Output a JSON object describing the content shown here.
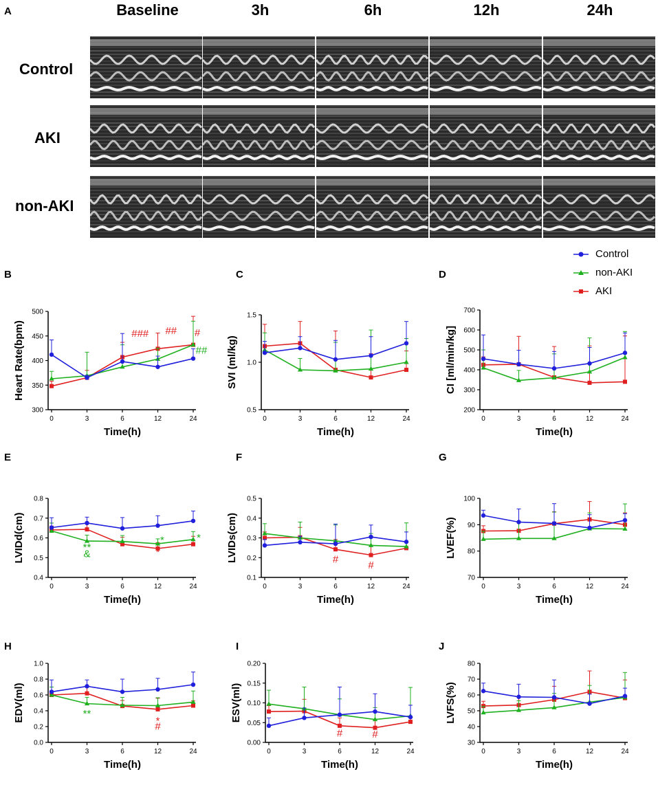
{
  "panel_a": {
    "letter": "A",
    "columns": [
      "Baseline",
      "3h",
      "6h",
      "12h",
      "24h"
    ],
    "rows": [
      "Control",
      "AKI",
      "non-AKI"
    ]
  },
  "legend": [
    {
      "name": "Control",
      "color": "#1f1fdc",
      "marker": "circle"
    },
    {
      "name": "non-AKI",
      "color": "#1fb01f",
      "marker": "triangle"
    },
    {
      "name": "AKI",
      "color": "#e02020",
      "marker": "square"
    }
  ],
  "chart_data": [
    {
      "letter": "B",
      "type": "line",
      "ylabel": "Heart Rate(bpm)",
      "xlabel": "Time(h)",
      "x": [
        0,
        3,
        6,
        12,
        24
      ],
      "ylim": [
        300,
        500
      ],
      "yticks": [
        300,
        350,
        400,
        450,
        500
      ],
      "yticklabels": [
        "300",
        "350",
        "400",
        "450",
        "500"
      ],
      "series": [
        {
          "name": "Control",
          "values": [
            412,
            365,
            398,
            387,
            404
          ],
          "err": [
            30,
            5,
            57,
            22,
            20
          ]
        },
        {
          "name": "non-AKI",
          "values": [
            363,
            369,
            387,
            403,
            432
          ],
          "err": [
            15,
            48,
            45,
            22,
            48
          ]
        },
        {
          "name": "AKI",
          "values": [
            348,
            365,
            407,
            424,
            432
          ],
          "err": [
            10,
            15,
            30,
            32,
            58
          ]
        }
      ],
      "annotations": [
        {
          "text": "###",
          "x": 9,
          "y": 448,
          "color": "#e02020"
        },
        {
          "text": "##",
          "x": 16.5,
          "y": 454,
          "color": "#e02020"
        },
        {
          "text": "#",
          "x": 25.5,
          "y": 450,
          "color": "#e02020"
        },
        {
          "text": "##",
          "x": 27,
          "y": 414,
          "color": "#1fb01f"
        }
      ]
    },
    {
      "letter": "C",
      "type": "line",
      "ylabel": "SVI (ml/kg)",
      "xlabel": "Time(h)",
      "x": [
        0,
        3,
        6,
        12,
        24
      ],
      "ylim": [
        0.5,
        1.5
      ],
      "yticks": [
        0.5,
        1.0,
        1.5
      ],
      "yticklabels": [
        "0.5",
        "1.0",
        "1.5"
      ],
      "series": [
        {
          "name": "Control",
          "values": [
            1.1,
            1.15,
            1.03,
            1.07,
            1.2
          ],
          "err": [
            0.12,
            0.12,
            0.2,
            0.2,
            0.23
          ]
        },
        {
          "name": "non-AKI",
          "values": [
            1.13,
            0.92,
            0.91,
            0.93,
            1.0
          ],
          "err": [
            0.18,
            0.12,
            0.3,
            0.41,
            0.25
          ]
        },
        {
          "name": "AKI",
          "values": [
            1.17,
            1.2,
            0.92,
            0.84,
            0.92
          ],
          "err": [
            0.23,
            0.23,
            0.41,
            0.25,
            0.2
          ]
        }
      ],
      "annotations": []
    },
    {
      "letter": "D",
      "type": "line",
      "ylabel": "CI [ml/min/kg]",
      "xlabel": "Time(h)",
      "x": [
        0,
        3,
        6,
        12,
        24
      ],
      "ylim": [
        200,
        700
      ],
      "yticks": [
        200,
        300,
        400,
        500,
        600,
        700
      ],
      "yticklabels": [
        "200",
        "300",
        "400",
        "500",
        "600",
        "700"
      ],
      "series": [
        {
          "name": "Control",
          "values": [
            455,
            428,
            407,
            432,
            485
          ],
          "err": [
            120,
            70,
            85,
            80,
            100
          ]
        },
        {
          "name": "non-AKI",
          "values": [
            410,
            347,
            360,
            390,
            462
          ],
          "err": [
            90,
            50,
            120,
            170,
            130
          ]
        },
        {
          "name": "AKI",
          "values": [
            425,
            428,
            362,
            335,
            340
          ],
          "err": [
            40,
            140,
            155,
            185,
            230
          ]
        }
      ],
      "annotations": []
    },
    {
      "letter": "E",
      "type": "line",
      "ylabel": "LVIDd(cm)",
      "xlabel": "Time(h)",
      "x": [
        0,
        3,
        6,
        12,
        24
      ],
      "ylim": [
        0.4,
        0.8
      ],
      "yticks": [
        0.4,
        0.5,
        0.6,
        0.7,
        0.8
      ],
      "yticklabels": [
        "0.4",
        "0.5",
        "0.6",
        "0.7",
        "0.8"
      ],
      "series": [
        {
          "name": "Control",
          "values": [
            0.652,
            0.675,
            0.648,
            0.662,
            0.686
          ],
          "err": [
            0.05,
            0.03,
            0.055,
            0.05,
            0.05
          ]
        },
        {
          "name": "non-AKI",
          "values": [
            0.635,
            0.584,
            0.582,
            0.57,
            0.592
          ],
          "err": [
            0.04,
            0.03,
            0.03,
            0.025,
            0.04
          ]
        },
        {
          "name": "AKI",
          "values": [
            0.64,
            0.643,
            0.568,
            0.546,
            0.568
          ],
          "err": [
            0.02,
            0.035,
            0.035,
            0.03,
            0.04
          ]
        }
      ],
      "annotations": [
        {
          "text": "**",
          "x": 3,
          "y": 0.535,
          "color": "#1fb01f"
        },
        {
          "text": "&",
          "x": 3,
          "y": 0.503,
          "color": "#1fb01f"
        },
        {
          "text": "*",
          "x": 13.5,
          "y": 0.572,
          "color": "#1fb01f"
        },
        {
          "text": "*",
          "x": 12,
          "y": 0.512,
          "color": "#e02020"
        },
        {
          "text": "*",
          "x": 26,
          "y": 0.584,
          "color": "#1fb01f"
        }
      ]
    },
    {
      "letter": "F",
      "type": "line",
      "ylabel": "LVIDs(cm)",
      "xlabel": "Time(h)",
      "x": [
        0,
        3,
        6,
        12,
        24
      ],
      "ylim": [
        0.1,
        0.5
      ],
      "yticks": [
        0.1,
        0.2,
        0.3,
        0.4,
        0.5
      ],
      "yticklabels": [
        "0.1",
        "0.2",
        "0.3",
        "0.4",
        "0.5"
      ],
      "series": [
        {
          "name": "Control",
          "values": [
            0.262,
            0.278,
            0.27,
            0.305,
            0.28
          ],
          "err": [
            0.03,
            0.03,
            0.1,
            0.06,
            0.05
          ]
        },
        {
          "name": "non-AKI",
          "values": [
            0.322,
            0.3,
            0.285,
            0.262,
            0.256
          ],
          "err": [
            0.05,
            0.08,
            0.08,
            0.06,
            0.12
          ]
        },
        {
          "name": "AKI",
          "values": [
            0.3,
            0.303,
            0.242,
            0.213,
            0.248
          ],
          "err": [
            0.03,
            0.05,
            0.05,
            0.05,
            0.03
          ]
        }
      ],
      "annotations": [
        {
          "text": "#",
          "x": 6,
          "y": 0.175,
          "color": "#e02020"
        },
        {
          "text": "#",
          "x": 12,
          "y": 0.145,
          "color": "#e02020"
        }
      ]
    },
    {
      "letter": "G",
      "type": "line",
      "ylabel": "LVEF(%)",
      "xlabel": "Time(h)",
      "x": [
        0,
        3,
        6,
        12,
        24
      ],
      "ylim": [
        70,
        100
      ],
      "yticks": [
        70,
        80,
        90,
        100
      ],
      "yticklabels": [
        "70",
        "80",
        "90",
        "100"
      ],
      "series": [
        {
          "name": "Control",
          "values": [
            93.5,
            91.0,
            90.5,
            88.8,
            91.7
          ],
          "err": [
            2,
            5,
            7.5,
            5,
            2.5
          ]
        },
        {
          "name": "non-AKI",
          "values": [
            84.5,
            84.8,
            84.8,
            88.5,
            88.4
          ],
          "err": [
            3,
            6,
            10,
            6,
            9.5
          ]
        },
        {
          "name": "AKI",
          "values": [
            87.6,
            87.7,
            90.4,
            92.0,
            90.0
          ],
          "err": [
            2,
            3,
            4.5,
            6.8,
            4.5
          ]
        }
      ],
      "annotations": []
    },
    {
      "letter": "H",
      "type": "line",
      "ylabel": "EDV(ml)",
      "xlabel": "Time(h)",
      "x": [
        0,
        3,
        6,
        12,
        24
      ],
      "ylim": [
        0.0,
        1.0
      ],
      "yticks": [
        0.0,
        0.2,
        0.4,
        0.6,
        0.8,
        1.0
      ],
      "yticklabels": [
        "0.0",
        "0.2",
        "0.4",
        "0.6",
        "0.8",
        "1.0"
      ],
      "series": [
        {
          "name": "Control",
          "values": [
            0.64,
            0.71,
            0.64,
            0.67,
            0.73
          ],
          "err": [
            0.15,
            0.08,
            0.16,
            0.14,
            0.16
          ]
        },
        {
          "name": "non-AKI",
          "values": [
            0.6,
            0.49,
            0.47,
            0.465,
            0.51
          ],
          "err": [
            0.1,
            0.08,
            0.1,
            0.1,
            0.14
          ]
        },
        {
          "name": "AKI",
          "values": [
            0.6,
            0.62,
            0.46,
            0.418,
            0.465
          ],
          "err": [
            0.05,
            0.1,
            0.07,
            0.14,
            0.06
          ]
        }
      ],
      "annotations": [
        {
          "text": "**",
          "x": 3,
          "y": 0.32,
          "color": "#1fb01f"
        },
        {
          "text": "*",
          "x": 12,
          "y": 0.23,
          "color": "#e02020"
        },
        {
          "text": "#",
          "x": 12,
          "y": 0.16,
          "color": "#e02020"
        }
      ]
    },
    {
      "letter": "I",
      "type": "line",
      "ylabel": "ESV(ml)",
      "xlabel": "Time(h)",
      "x": [
        0,
        3,
        6,
        12,
        24
      ],
      "ylim": [
        0.0,
        0.2
      ],
      "yticks": [
        0.0,
        0.05,
        0.1,
        0.15,
        0.2
      ],
      "yticklabels": [
        "0.00",
        "0.05",
        "0.10",
        "0.15",
        "0.20"
      ],
      "series": [
        {
          "name": "Control",
          "values": [
            0.042,
            0.062,
            0.07,
            0.078,
            0.064
          ],
          "err": [
            0.02,
            0.025,
            0.07,
            0.045,
            0.03
          ]
        },
        {
          "name": "non-AKI",
          "values": [
            0.097,
            0.085,
            0.07,
            0.058,
            0.067
          ],
          "err": [
            0.035,
            0.055,
            0.04,
            0.03,
            0.072
          ]
        },
        {
          "name": "AKI",
          "values": [
            0.078,
            0.079,
            0.042,
            0.037,
            0.052
          ],
          "err": [
            0.015,
            0.03,
            0.02,
            0.02,
            0.01
          ]
        }
      ],
      "annotations": [
        {
          "text": "#",
          "x": 6,
          "y": 0.015,
          "color": "#e02020"
        },
        {
          "text": "#",
          "x": 12,
          "y": 0.012,
          "color": "#e02020"
        }
      ]
    },
    {
      "letter": "J",
      "type": "line",
      "ylabel": "LVFS(%)",
      "xlabel": "Time(h)",
      "x": [
        0,
        3,
        6,
        12,
        24
      ],
      "ylim": [
        30,
        80
      ],
      "yticks": [
        30,
        40,
        50,
        60,
        70,
        80
      ],
      "yticklabels": [
        "30",
        "40",
        "50",
        "60",
        "70",
        "80"
      ],
      "series": [
        {
          "name": "Control",
          "values": [
            62.5,
            58.8,
            58.5,
            54.5,
            59.3
          ],
          "err": [
            5,
            8,
            11,
            6,
            5
          ]
        },
        {
          "name": "non-AKI",
          "values": [
            48.8,
            50.3,
            52.0,
            55.5,
            58.4
          ],
          "err": [
            4,
            6,
            9,
            10.5,
            15.8
          ]
        },
        {
          "name": "AKI",
          "values": [
            53.0,
            53.6,
            57.0,
            62.0,
            58.0
          ],
          "err": [
            3,
            5,
            8.5,
            13.2,
            11.5
          ]
        }
      ],
      "annotations": []
    }
  ]
}
